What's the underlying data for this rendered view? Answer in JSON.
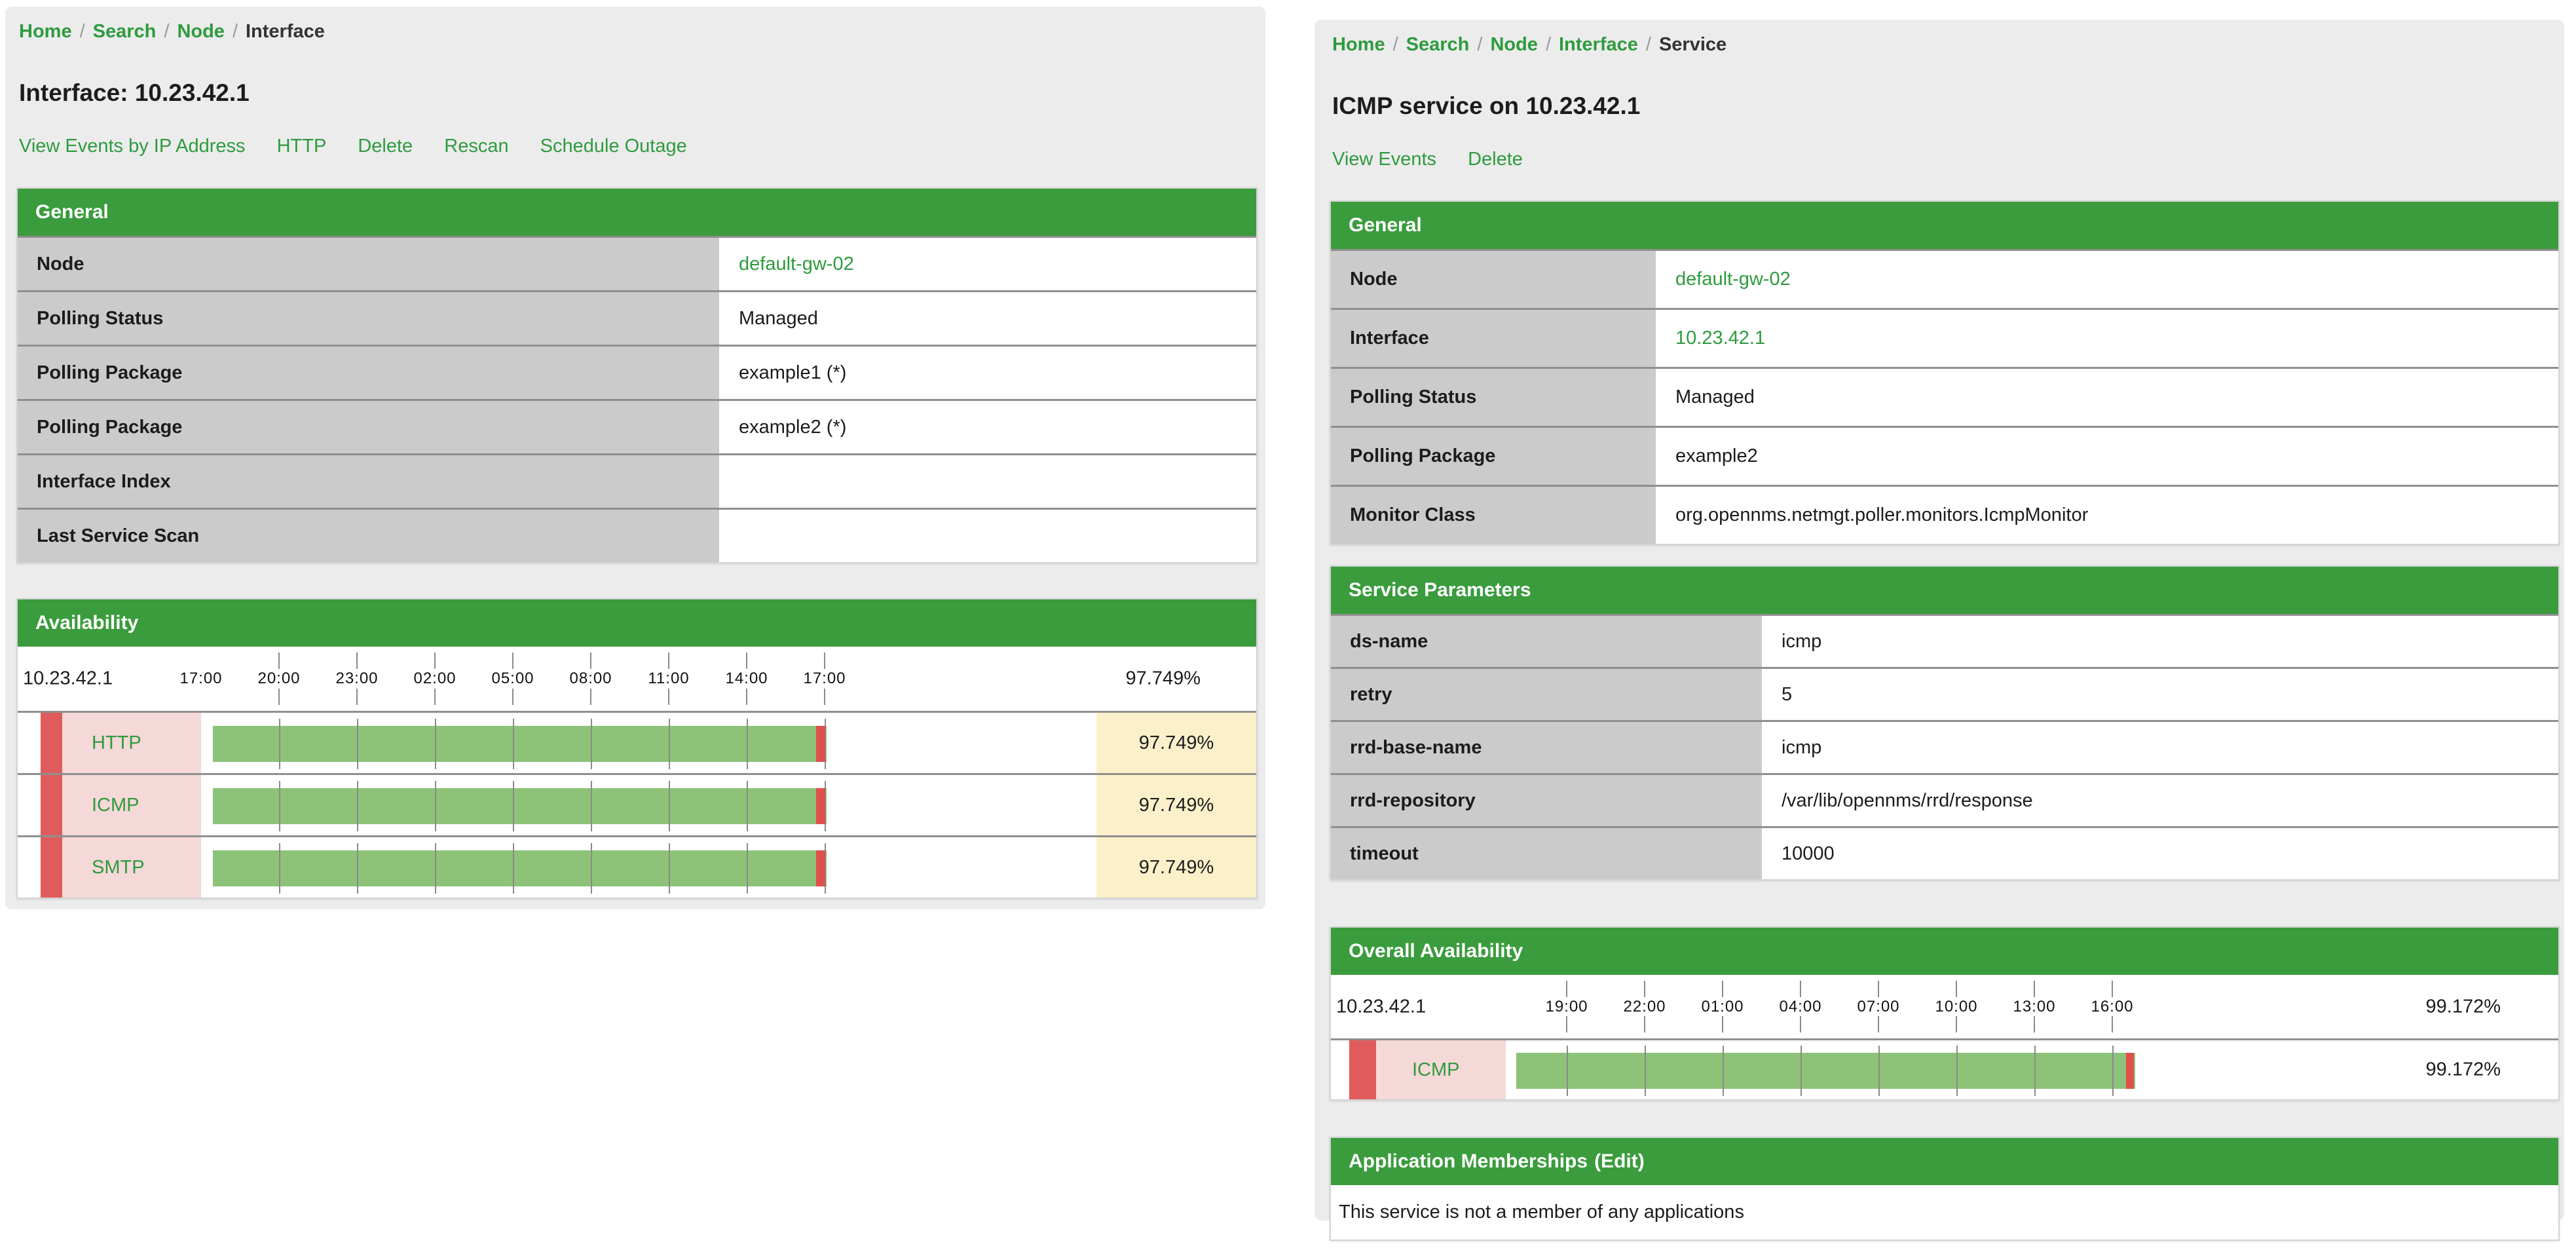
{
  "colors": {
    "green-header": "#3a9c3d",
    "green-link": "#2e9b3e",
    "panel-bg": "#ececec",
    "label-cell": "#cbcbcb",
    "pink": "#f5d8d8",
    "stripe-red": "#e05c5c",
    "bar-green": "#8cc379",
    "percent-yellow": "#fbf0ca"
  },
  "left": {
    "breadcrumb": {
      "home": "Home",
      "search": "Search",
      "node": "Node",
      "interface": "Interface",
      "separator": "/"
    },
    "title": "Interface: 10.23.42.1",
    "actions": {
      "view_events": "View Events by IP Address",
      "http": "HTTP",
      "delete": "Delete",
      "rescan": "Rescan",
      "schedule_outage": "Schedule Outage"
    },
    "general": {
      "header": "General",
      "rows": [
        {
          "label": "Node",
          "value": "default-gw-02"
        },
        {
          "label": "Polling Status",
          "value": "Managed"
        },
        {
          "label": "Polling Package",
          "value": "example1 (*)"
        },
        {
          "label": "Polling Package",
          "value": "example2 (*)"
        },
        {
          "label": "Interface Index",
          "value": ""
        },
        {
          "label": "Last Service Scan",
          "value": ""
        }
      ]
    },
    "availability": {
      "header": "Availability",
      "ip": "10.23.42.1",
      "overall_percent": "97.749%",
      "axis_labels": [
        "17:00",
        "20:00",
        "23:00",
        "02:00",
        "05:00",
        "08:00",
        "11:00",
        "14:00",
        "17:00"
      ],
      "services": [
        {
          "name": "HTTP",
          "percent": "97.749%"
        },
        {
          "name": "ICMP",
          "percent": "97.749%"
        },
        {
          "name": "SMTP",
          "percent": "97.749%"
        }
      ]
    }
  },
  "right": {
    "breadcrumb": {
      "home": "Home",
      "search": "Search",
      "node": "Node",
      "interface": "Interface",
      "service": "Service",
      "separator": "/"
    },
    "title": "ICMP service on 10.23.42.1",
    "actions": {
      "view_events": "View Events",
      "delete": "Delete"
    },
    "general": {
      "header": "General",
      "rows": [
        {
          "label": "Node",
          "value": "default-gw-02"
        },
        {
          "label": "Interface",
          "value": "10.23.42.1"
        },
        {
          "label": "Polling Status",
          "value": "Managed"
        },
        {
          "label": "Polling Package",
          "value": "example2"
        },
        {
          "label": "Monitor Class",
          "value": "org.opennms.netmgt.poller.monitors.IcmpMonitor"
        }
      ]
    },
    "service_parameters": {
      "header": "Service Parameters",
      "rows": [
        {
          "label": "ds-name",
          "value": "icmp"
        },
        {
          "label": "retry",
          "value": "5"
        },
        {
          "label": "rrd-base-name",
          "value": "icmp"
        },
        {
          "label": "rrd-repository",
          "value": "/var/lib/opennms/rrd/response"
        },
        {
          "label": "timeout",
          "value": "10000"
        }
      ]
    },
    "overall_availability": {
      "header": "Overall Availability",
      "ip": "10.23.42.1",
      "overall_percent": "99.172%",
      "axis_labels": [
        "19:00",
        "22:00",
        "01:00",
        "04:00",
        "07:00",
        "10:00",
        "13:00",
        "16:00"
      ],
      "services": [
        {
          "name": "ICMP",
          "percent": "99.172%"
        }
      ]
    },
    "application_memberships": {
      "header": "Application Memberships",
      "edit_link": "(Edit)",
      "empty_message": "This service is not a member of any applications"
    }
  }
}
